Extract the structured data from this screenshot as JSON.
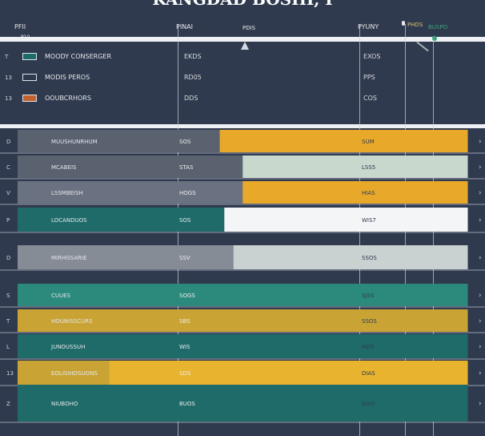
{
  "title": "KANGDAD BOSHI, I",
  "header": {
    "col1": "PFII",
    "col2": "PINAI",
    "col3": "PDIS",
    "col4": "PYUNY",
    "col5": "PHDS",
    "col6": "BUSPO",
    "row_label": "P10"
  },
  "legend": [
    {
      "label": "MOODY CONSERGER",
      "color": "#1e6b6a",
      "value": "EKDS",
      "col4": "EXOS",
      "index": "T"
    },
    {
      "label": "MODIS PEROS",
      "color": "#2f3a4f",
      "value": "RD05",
      "col4": "PPS",
      "index": "13"
    },
    {
      "label": "OOUBCRHORS",
      "color": "#c4622d",
      "value": "DDS",
      "col4": "COS",
      "index": "13"
    }
  ],
  "colors": {
    "background": "#2f3a4f",
    "gray": "#5a6270",
    "teal": "#1e6b6a",
    "gold": "#e8a92a",
    "mint": "#c8d8cd",
    "white": "#f4f5f6",
    "mustard": "#c9a434",
    "panel": "#c9d2d0"
  },
  "chart_data": {
    "type": "bar",
    "title": "KANGDAD BOSHI, I",
    "categories": [
      "MUUSHUNRHUM",
      "MCABEIS",
      "LSSMBEISH",
      "LOCANDUOS",
      "MIRHGSARIE",
      "CUUES",
      "HOUNISSCURS",
      "JUNOUSSUH",
      "EOLISIHDSUONS",
      "NIUBOHO"
    ],
    "row_index": [
      "D",
      "C",
      "V",
      "P",
      "D",
      "S",
      "T",
      "L",
      "13",
      "Z"
    ],
    "mid_labels": [
      "SOS",
      "STAS",
      "HOGS",
      "SOS",
      "SSV",
      "SOGS",
      "SBS",
      "WIS",
      "SDS",
      "BUOS"
    ],
    "right_labels": [
      "SUM",
      "LSS5",
      "HIAS",
      "WIS7",
      "SSOS",
      "SJSS",
      "SSOS",
      "HOS",
      "DIAS",
      "EOIS"
    ],
    "xlim": [
      0,
      100
    ],
    "series": [
      {
        "values": [
          44,
          49,
          49,
          45,
          47,
          37,
          20,
          37,
          20,
          44
        ]
      },
      {
        "values": [
          98,
          98,
          98,
          98,
          98,
          98,
          98,
          98,
          98,
          98
        ]
      }
    ],
    "row_colors": [
      [
        "#5a6270",
        "#e8a92a"
      ],
      [
        "#5a6270",
        "#c8d8cd"
      ],
      [
        "#6a7180",
        "#e8a92a"
      ],
      [
        "#1e6b6a",
        "#f4f5f6"
      ],
      [
        "#858c96",
        "#c9d2d0"
      ],
      [
        "#2b8a7b",
        "#2b8a7b"
      ],
      [
        "#c9a434",
        "#c9a434"
      ],
      [
        "#1e6b6a",
        "#1e6b6a"
      ],
      [
        "#c9a434",
        "#e8b32e"
      ],
      [
        "#1e6b6a",
        "#1e6b6a"
      ]
    ],
    "grid": true,
    "legend_position": "top-left"
  }
}
